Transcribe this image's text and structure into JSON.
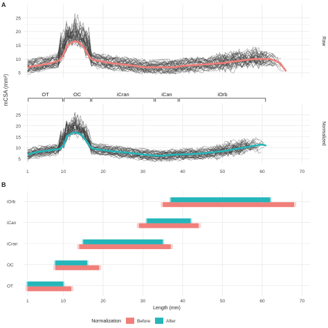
{
  "chart_data": [
    {
      "panel": "A",
      "type": "line",
      "ylabel": "mCSA (mm²)",
      "x_ticks": [
        1,
        10,
        20,
        30,
        40,
        50,
        60,
        70
      ],
      "xlim": [
        0,
        72
      ],
      "grid": true,
      "regions": [
        {
          "label": "OT",
          "x0": 1,
          "x1": 10
        },
        {
          "label": "OC",
          "x0": 10,
          "x1": 17
        },
        {
          "label": "iCran",
          "x0": 17,
          "x1": 33
        },
        {
          "label": "iCan",
          "x0": 33,
          "x1": 39
        },
        {
          "label": "iOrb",
          "x0": 39,
          "x1": 61
        }
      ],
      "facets": [
        {
          "strip": "Raw",
          "y_ticks": [
            5,
            10,
            15,
            20,
            25
          ],
          "ylim": [
            3,
            30
          ],
          "mean_color": "#f07f7a",
          "mean": {
            "x": [
              1,
              3,
              5,
              7,
              9,
              10,
              11,
              12,
              13,
              14,
              15,
              16,
              17,
              18,
              20,
              22,
              25,
              28,
              30,
              33,
              35,
              38,
              40,
              45,
              50,
              55,
              58,
              60,
              62,
              64,
              65,
              66
            ],
            "y": [
              7,
              7.5,
              8,
              8.5,
              9.5,
              11.5,
              15,
              16,
              16.5,
              16,
              14.5,
              12,
              10,
              9.5,
              9,
              8.5,
              8,
              7.5,
              7,
              7,
              7,
              7,
              7.5,
              8,
              8.5,
              9.5,
              10,
              10,
              10,
              9,
              7.5,
              5.5
            ]
          }
        },
        {
          "strip": "Normalized",
          "y_ticks": [
            5,
            10,
            15,
            20,
            25
          ],
          "ylim": [
            3,
            30
          ],
          "mean_color": "#25b6ba",
          "mean": {
            "x": [
              1,
              3,
              5,
              7,
              9,
              10,
              11,
              12,
              13,
              14,
              15,
              16,
              17,
              18,
              20,
              22,
              25,
              28,
              30,
              33,
              35,
              38,
              40,
              45,
              50,
              55,
              58,
              60,
              61
            ],
            "y": [
              7,
              8,
              8.5,
              9,
              9.5,
              11,
              15.5,
              16.5,
              17,
              16.5,
              15,
              12.5,
              10,
              9.5,
              9,
              8.5,
              8,
              7.5,
              7,
              6.5,
              6.5,
              7,
              7,
              7.5,
              8.5,
              10,
              11,
              11.5,
              11
            ]
          }
        }
      ]
    },
    {
      "panel": "B",
      "type": "bar",
      "orientation": "horizontal",
      "xlabel": "Length (mm)",
      "x_ticks": [
        1,
        10,
        20,
        30,
        40,
        50,
        60,
        70
      ],
      "xlim": [
        0,
        72
      ],
      "categories": [
        "iOrb",
        "iCan",
        "iCran",
        "OC",
        "OT"
      ],
      "series": [
        {
          "name": "Before",
          "color": "#f07f7a",
          "ranges": [
            [
              35,
              68
            ],
            [
              29,
              44
            ],
            [
              14,
              37
            ],
            [
              8,
              19
            ],
            [
              1,
              12
            ]
          ]
        },
        {
          "name": "After",
          "color": "#25b6ba",
          "ranges": [
            [
              37,
              62
            ],
            [
              31,
              42
            ],
            [
              15,
              35
            ],
            [
              8,
              16
            ],
            [
              1,
              10
            ]
          ]
        }
      ],
      "legend": {
        "title": "Normalization",
        "position": "bottom"
      }
    }
  ]
}
